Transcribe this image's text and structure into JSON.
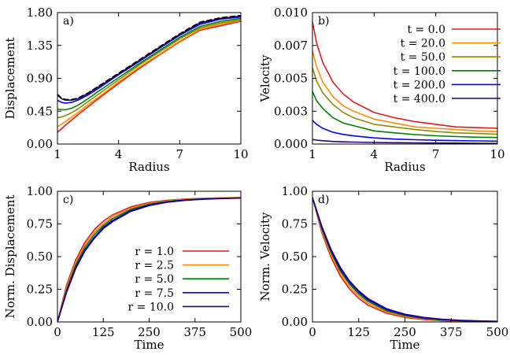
{
  "chart_data": [
    {
      "panel": "a)",
      "type": "line",
      "xlabel": "Radius",
      "ylabel": "Displacement",
      "xlim": [
        1,
        10
      ],
      "ylim": [
        0,
        1.8
      ],
      "xticks": [
        "1",
        "4",
        "7",
        "10"
      ],
      "yticks": [
        "0.00",
        "0.45",
        "0.90",
        "1.35",
        "1.80"
      ],
      "legend": "none",
      "x": [
        1,
        1.2,
        1.4,
        1.7,
        2,
        2.5,
        3,
        4,
        5,
        6,
        7,
        8,
        9,
        10
      ],
      "series": [
        {
          "color": "#e41a1c",
          "values": [
            0.16,
            0.21,
            0.26,
            0.33,
            0.4,
            0.51,
            0.62,
            0.83,
            1.03,
            1.22,
            1.4,
            1.56,
            1.62,
            1.68
          ]
        },
        {
          "color": "#ff8c00",
          "values": [
            0.24,
            0.27,
            0.31,
            0.37,
            0.43,
            0.54,
            0.64,
            0.85,
            1.05,
            1.23,
            1.41,
            1.57,
            1.64,
            1.69
          ]
        },
        {
          "color": "#8b8b00",
          "values": [
            0.36,
            0.37,
            0.39,
            0.43,
            0.48,
            0.58,
            0.68,
            0.88,
            1.08,
            1.26,
            1.44,
            1.59,
            1.66,
            1.7
          ]
        },
        {
          "color": "#008000",
          "values": [
            0.48,
            0.47,
            0.47,
            0.49,
            0.53,
            0.62,
            0.72,
            0.91,
            1.1,
            1.28,
            1.46,
            1.61,
            1.68,
            1.72
          ]
        },
        {
          "color": "#0000ff",
          "values": [
            0.6,
            0.57,
            0.56,
            0.57,
            0.6,
            0.67,
            0.76,
            0.95,
            1.13,
            1.31,
            1.49,
            1.64,
            1.71,
            1.74
          ]
        },
        {
          "color": "#2a0080",
          "values": [
            0.67,
            0.62,
            0.6,
            0.6,
            0.62,
            0.69,
            0.78,
            0.96,
            1.14,
            1.32,
            1.5,
            1.66,
            1.72,
            1.75
          ]
        },
        {
          "color": "#000000",
          "dashed": true,
          "values": [
            0.68,
            0.63,
            0.61,
            0.61,
            0.63,
            0.7,
            0.79,
            0.97,
            1.15,
            1.33,
            1.51,
            1.67,
            1.73,
            1.76
          ]
        }
      ]
    },
    {
      "panel": "b)",
      "type": "line",
      "xlabel": "Radius",
      "ylabel": "Velocity",
      "xlim": [
        1,
        10
      ],
      "ylim": [
        0,
        0.01
      ],
      "xticks": [
        "1",
        "4",
        "7",
        "10"
      ],
      "yticks": [
        "0.000",
        "0.003",
        "0.005",
        "0.007",
        "0.010"
      ],
      "legend": "top-right",
      "x": [
        1,
        1.2,
        1.5,
        2,
        2.5,
        3,
        4,
        5,
        6,
        7,
        8,
        9,
        10
      ],
      "series": [
        {
          "name": "t = 0.0",
          "color": "#e41a1c",
          "values": [
            0.0093,
            0.0077,
            0.0062,
            0.0047,
            0.0038,
            0.0032,
            0.0024,
            0.002,
            0.0017,
            0.0015,
            0.0013,
            0.00125,
            0.0012
          ]
        },
        {
          "name": "t = 20.0",
          "color": "#ff8c00",
          "values": [
            0.0071,
            0.0059,
            0.0047,
            0.0036,
            0.0029,
            0.0025,
            0.0019,
            0.0016,
            0.0013,
            0.0012,
            0.0011,
            0.001,
            0.00095
          ]
        },
        {
          "name": "t = 50.0",
          "color": "#8b8b00",
          "values": [
            0.0058,
            0.0048,
            0.0039,
            0.003,
            0.0024,
            0.002,
            0.0015,
            0.0013,
            0.0011,
            0.00095,
            0.00085,
            0.0008,
            0.00075
          ]
        },
        {
          "name": "t = 100.0",
          "color": "#008000",
          "values": [
            0.004,
            0.0033,
            0.0027,
            0.002,
            0.0016,
            0.0014,
            0.001,
            0.00085,
            0.00072,
            0.00063,
            0.00057,
            0.00052,
            0.0005
          ]
        },
        {
          "name": "t = 200.0",
          "color": "#0000ff",
          "values": [
            0.0018,
            0.0015,
            0.0012,
            0.0009,
            0.00073,
            0.00062,
            0.00047,
            0.00038,
            0.00033,
            0.00029,
            0.00026,
            0.00024,
            0.00022
          ]
        },
        {
          "name": "t = 400.0",
          "color": "#2a0080",
          "values": [
            0.00035,
            0.0003,
            0.00025,
            0.0002,
            0.00017,
            0.00015,
            0.00012,
            0.0001,
            9e-05,
            8e-05,
            7e-05,
            6e-05,
            5e-05
          ]
        }
      ]
    },
    {
      "panel": "c)",
      "type": "line",
      "xlabel": "Time",
      "ylabel": "Norm. Displacement",
      "xlim": [
        0,
        500
      ],
      "ylim": [
        0,
        1.05
      ],
      "xticks": [
        "0",
        "125",
        "250",
        "375",
        "500"
      ],
      "yticks": [
        "0.00",
        "0.25",
        "0.50",
        "0.75",
        "1.00"
      ],
      "legend": "lower-right",
      "x": [
        0,
        25,
        50,
        75,
        100,
        125,
        150,
        200,
        250,
        300,
        350,
        400,
        450,
        500
      ],
      "series": [
        {
          "name": "r = 1.0",
          "color": "#e41a1c",
          "values": [
            0.0,
            0.3,
            0.5,
            0.64,
            0.74,
            0.81,
            0.86,
            0.925,
            0.96,
            0.978,
            0.988,
            0.994,
            0.997,
            1.0
          ]
        },
        {
          "name": "r = 2.5",
          "color": "#ff8c00",
          "values": [
            0.0,
            0.28,
            0.48,
            0.62,
            0.72,
            0.79,
            0.845,
            0.915,
            0.953,
            0.973,
            0.985,
            0.992,
            0.996,
            0.998
          ]
        },
        {
          "name": "r = 5.0",
          "color": "#008000",
          "values": [
            0.0,
            0.26,
            0.46,
            0.6,
            0.7,
            0.775,
            0.83,
            0.905,
            0.946,
            0.969,
            0.982,
            0.99,
            0.994,
            0.997
          ]
        },
        {
          "name": "r = 7.5",
          "color": "#0000ff",
          "values": [
            0.0,
            0.25,
            0.44,
            0.58,
            0.68,
            0.76,
            0.815,
            0.895,
            0.94,
            0.965,
            0.979,
            0.988,
            0.993,
            0.996
          ]
        },
        {
          "name": "r = 10.0",
          "color": "#2a0080",
          "values": [
            0.0,
            0.24,
            0.43,
            0.57,
            0.67,
            0.75,
            0.805,
            0.888,
            0.935,
            0.962,
            0.977,
            0.986,
            0.992,
            0.995
          ]
        }
      ]
    },
    {
      "panel": "d)",
      "type": "line",
      "xlabel": "Time",
      "ylabel": "Norm. Velocity",
      "xlim": [
        0,
        500
      ],
      "ylim": [
        0,
        1.05
      ],
      "xticks": [
        "0",
        "125",
        "250",
        "375",
        "500"
      ],
      "yticks": [
        "0.00",
        "0.25",
        "0.50",
        "0.75",
        "1.00"
      ],
      "legend": "none",
      "x": [
        0,
        25,
        50,
        75,
        100,
        125,
        150,
        200,
        250,
        300,
        350,
        400,
        450,
        500
      ],
      "series": [
        {
          "color": "#e41a1c",
          "values": [
            1.0,
            0.72,
            0.52,
            0.37,
            0.265,
            0.19,
            0.135,
            0.07,
            0.036,
            0.019,
            0.01,
            0.005,
            0.003,
            0.001
          ]
        },
        {
          "color": "#ff8c00",
          "values": [
            1.0,
            0.735,
            0.54,
            0.39,
            0.285,
            0.21,
            0.15,
            0.08,
            0.043,
            0.024,
            0.013,
            0.007,
            0.004,
            0.002
          ]
        },
        {
          "color": "#008000",
          "values": [
            1.0,
            0.75,
            0.56,
            0.41,
            0.305,
            0.225,
            0.165,
            0.09,
            0.05,
            0.028,
            0.016,
            0.009,
            0.005,
            0.003
          ]
        },
        {
          "color": "#0000ff",
          "values": [
            1.0,
            0.76,
            0.575,
            0.425,
            0.32,
            0.24,
            0.178,
            0.1,
            0.057,
            0.033,
            0.019,
            0.011,
            0.006,
            0.004
          ]
        },
        {
          "color": "#2a0080",
          "values": [
            1.0,
            0.77,
            0.585,
            0.44,
            0.33,
            0.25,
            0.188,
            0.107,
            0.062,
            0.037,
            0.022,
            0.013,
            0.008,
            0.005
          ]
        }
      ]
    }
  ]
}
